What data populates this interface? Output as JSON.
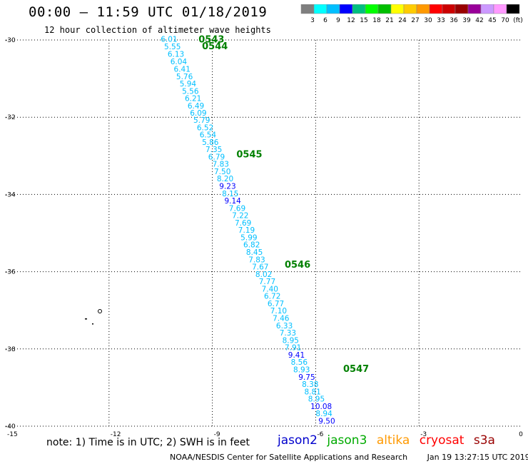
{
  "header": {
    "title": "00:00 – 11:59 UTC 01/18/2019",
    "subtitle": "12 hour collection of altimeter wave heights"
  },
  "colorbar": {
    "colors": [
      "#7f7f7f",
      "#00ffff",
      "#00bfff",
      "#0000ff",
      "#00bf7f",
      "#00ff00",
      "#00bf00",
      "#ffff00",
      "#ffcc00",
      "#ff9900",
      "#ff0000",
      "#cc0000",
      "#990000",
      "#990099",
      "#cc99ff",
      "#ff99ff",
      "#000000"
    ],
    "labels": [
      "3",
      "6",
      "9",
      "12",
      "15",
      "18",
      "21",
      "24",
      "27",
      "30",
      "33",
      "36",
      "39",
      "42",
      "45",
      "70",
      "(ft)"
    ]
  },
  "map": {
    "x_ticks": [
      "-15",
      "-12",
      "-9",
      "-6",
      "-3",
      "0"
    ],
    "y_ticks": [
      "-30",
      "-32",
      "-34",
      "-36",
      "-38",
      "-40"
    ],
    "pass_labels": [
      {
        "text": "0543",
        "lon": -9.4,
        "lat": -29.97
      },
      {
        "text": "0544",
        "lon": -9.3,
        "lat": -30.15
      },
      {
        "text": "0545",
        "lon": -8.3,
        "lat": -32.95
      },
      {
        "text": "0546",
        "lon": -6.9,
        "lat": -35.8
      },
      {
        "text": "0547",
        "lon": -5.2,
        "lat": -38.5
      }
    ],
    "samples": [
      {
        "v": "6.01",
        "lon": -10.5,
        "lat": -29.97,
        "c": "#00bfff"
      },
      {
        "v": "5.55",
        "lon": -10.4,
        "lat": -30.17,
        "c": "#00bfff"
      },
      {
        "v": "6.13",
        "lon": -10.3,
        "lat": -30.36,
        "c": "#00bfff"
      },
      {
        "v": "6.04",
        "lon": -10.22,
        "lat": -30.55,
        "c": "#00bfff"
      },
      {
        "v": "6.41",
        "lon": -10.12,
        "lat": -30.75,
        "c": "#00bfff"
      },
      {
        "v": "5.76",
        "lon": -10.05,
        "lat": -30.94,
        "c": "#00bfff"
      },
      {
        "v": "5.94",
        "lon": -9.95,
        "lat": -31.13,
        "c": "#00bfff"
      },
      {
        "v": "5.56",
        "lon": -9.88,
        "lat": -31.32,
        "c": "#00bfff"
      },
      {
        "v": "6.21",
        "lon": -9.8,
        "lat": -31.51,
        "c": "#00bfff"
      },
      {
        "v": "6.49",
        "lon": -9.72,
        "lat": -31.7,
        "c": "#00bfff"
      },
      {
        "v": "6.09",
        "lon": -9.65,
        "lat": -31.89,
        "c": "#00bfff"
      },
      {
        "v": "5.79",
        "lon": -9.55,
        "lat": -32.07,
        "c": "#00bfff"
      },
      {
        "v": "6.52",
        "lon": -9.45,
        "lat": -32.26,
        "c": "#00bfff"
      },
      {
        "v": "6.54",
        "lon": -9.37,
        "lat": -32.45,
        "c": "#00bfff"
      },
      {
        "v": "5.86",
        "lon": -9.3,
        "lat": -32.64,
        "c": "#00bfff"
      },
      {
        "v": "7.35",
        "lon": -9.2,
        "lat": -32.83,
        "c": "#00bfff"
      },
      {
        "v": "6.79",
        "lon": -9.12,
        "lat": -33.02,
        "c": "#00bfff"
      },
      {
        "v": "7.83",
        "lon": -9.0,
        "lat": -33.21,
        "c": "#00bfff"
      },
      {
        "v": "7.50",
        "lon": -8.95,
        "lat": -33.4,
        "c": "#00bfff"
      },
      {
        "v": "8.20",
        "lon": -8.87,
        "lat": -33.59,
        "c": "#00bfff"
      },
      {
        "v": "9.23",
        "lon": -8.8,
        "lat": -33.78,
        "c": "#0000ff"
      },
      {
        "v": "8.15",
        "lon": -8.72,
        "lat": -33.97,
        "c": "#00bfff"
      },
      {
        "v": "9.14",
        "lon": -8.65,
        "lat": -34.16,
        "c": "#0000ff"
      },
      {
        "v": "7.69",
        "lon": -8.52,
        "lat": -34.35,
        "c": "#00bfff"
      },
      {
        "v": "7.22",
        "lon": -8.43,
        "lat": -34.54,
        "c": "#00bfff"
      },
      {
        "v": "7.69",
        "lon": -8.35,
        "lat": -34.73,
        "c": "#00bfff"
      },
      {
        "v": "7.19",
        "lon": -8.25,
        "lat": -34.92,
        "c": "#00bfff"
      },
      {
        "v": "5.99",
        "lon": -8.18,
        "lat": -35.11,
        "c": "#00bfff"
      },
      {
        "v": "6.82",
        "lon": -8.1,
        "lat": -35.3,
        "c": "#00bfff"
      },
      {
        "v": "8.45",
        "lon": -8.02,
        "lat": -35.49,
        "c": "#00bfff"
      },
      {
        "v": "7.83",
        "lon": -7.95,
        "lat": -35.68,
        "c": "#00bfff"
      },
      {
        "v": "7.67",
        "lon": -7.85,
        "lat": -35.87,
        "c": "#00bfff"
      },
      {
        "v": "8.02",
        "lon": -7.75,
        "lat": -36.06,
        "c": "#00bfff"
      },
      {
        "v": "7.77",
        "lon": -7.65,
        "lat": -36.25,
        "c": "#00bfff"
      },
      {
        "v": "7.40",
        "lon": -7.57,
        "lat": -36.44,
        "c": "#00bfff"
      },
      {
        "v": "6.72",
        "lon": -7.5,
        "lat": -36.63,
        "c": "#00bfff"
      },
      {
        "v": "6.77",
        "lon": -7.4,
        "lat": -36.82,
        "c": "#00bfff"
      },
      {
        "v": "7.10",
        "lon": -7.32,
        "lat": -37.01,
        "c": "#00bfff"
      },
      {
        "v": "7.46",
        "lon": -7.25,
        "lat": -37.2,
        "c": "#00bfff"
      },
      {
        "v": "6.33",
        "lon": -7.15,
        "lat": -37.39,
        "c": "#00bfff"
      },
      {
        "v": "7.33",
        "lon": -7.05,
        "lat": -37.58,
        "c": "#00bfff"
      },
      {
        "v": "8.95",
        "lon": -6.97,
        "lat": -37.77,
        "c": "#00bfff"
      },
      {
        "v": "7.91",
        "lon": -6.9,
        "lat": -37.96,
        "c": "#00bfff"
      },
      {
        "v": "9.41",
        "lon": -6.8,
        "lat": -38.15,
        "c": "#0000ff"
      },
      {
        "v": "8.56",
        "lon": -6.72,
        "lat": -38.34,
        "c": "#00bfff"
      },
      {
        "v": "8.93",
        "lon": -6.65,
        "lat": -38.53,
        "c": "#00bfff"
      },
      {
        "v": "9.75",
        "lon": -6.5,
        "lat": -38.72,
        "c": "#0000ff"
      },
      {
        "v": "8.38",
        "lon": -6.4,
        "lat": -38.91,
        "c": "#00bfff"
      },
      {
        "v": "8.81",
        "lon": -6.33,
        "lat": -39.1,
        "c": "#00bfff"
      },
      {
        "v": "8.95",
        "lon": -6.22,
        "lat": -39.29,
        "c": "#00bfff"
      },
      {
        "v": "10.08",
        "lon": -6.15,
        "lat": -39.48,
        "c": "#0000ff"
      },
      {
        "v": "8.94",
        "lon": -6.0,
        "lat": -39.67,
        "c": "#00bfff"
      },
      {
        "v": "9.50",
        "lon": -5.92,
        "lat": -39.86,
        "c": "#0000ff"
      }
    ]
  },
  "footer": {
    "note": "note: 1) Time is in UTC; 2) SWH is in feet",
    "satellites": [
      {
        "name": "jason2",
        "color": "#0000cc"
      },
      {
        "name": "jason3",
        "color": "#00aa00"
      },
      {
        "name": "altika",
        "color": "#ff9900"
      },
      {
        "name": "cryosat",
        "color": "#ff0000"
      },
      {
        "name": "s3a",
        "color": "#990000"
      }
    ],
    "credit": "NOAA/NESDIS Center for Satellite Applications and Research",
    "timestamp": "Jan 19 13:27:15 UTC 2019"
  }
}
